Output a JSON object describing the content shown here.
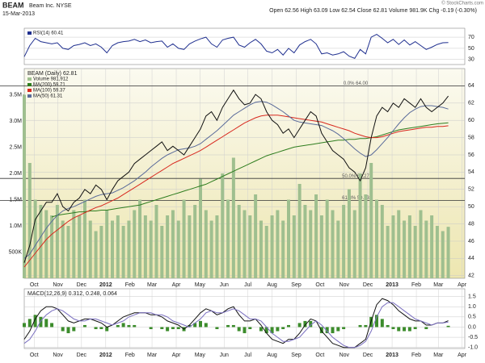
{
  "header": {
    "symbol": "BEAM",
    "name": "Beam Inc.  NYSE",
    "date": "15-Mar-2013",
    "quote": "Open 62.56  High 63.09  Low 62.54  Close 62.81  Volume 981.9K  Chg -0.19 (-0.30%)",
    "credit": "© StockCharts.com"
  },
  "chart_data": [
    {
      "type": "line",
      "xlim": [
        0,
        80
      ],
      "ylim": [
        21,
        86
      ],
      "yticks": [
        30,
        50,
        70
      ],
      "grid": true,
      "series": [
        {
          "name": "RSI(14) 60.41",
          "color": "#1f2f8f",
          "values": [
            35,
            55,
            68,
            62,
            60,
            58,
            60,
            50,
            48,
            55,
            57,
            60,
            55,
            58,
            52,
            42,
            55,
            60,
            62,
            63,
            66,
            62,
            65,
            60,
            62,
            63,
            52,
            58,
            50,
            48,
            58,
            63,
            67,
            70,
            58,
            52,
            65,
            68,
            70,
            56,
            52,
            60,
            66,
            58,
            45,
            42,
            48,
            38,
            50,
            42,
            56,
            62,
            66,
            58,
            40,
            42,
            38,
            40,
            44,
            36,
            32,
            48,
            40,
            70,
            75,
            68,
            60,
            66,
            57,
            65,
            56,
            62,
            55,
            48,
            52,
            57,
            60,
            60.41
          ]
        }
      ]
    },
    {
      "type": "line",
      "title": "BEAM (Daily) 62.81",
      "xlim": [
        0,
        80
      ],
      "ylim": [
        41.7,
        66
      ],
      "yticks": [
        42,
        44,
        46,
        48,
        50,
        52,
        54,
        56,
        58,
        60,
        62,
        64
      ],
      "grid": true,
      "xticks": [
        {
          "value": 1.8,
          "label": "Oct"
        },
        {
          "value": 6.1,
          "label": "Nov"
        },
        {
          "value": 10.4,
          "label": "Dec"
        },
        {
          "value": 14.8,
          "label": "2012"
        },
        {
          "value": 19.2,
          "label": "Feb"
        },
        {
          "value": 23.2,
          "label": "Mar"
        },
        {
          "value": 27.6,
          "label": "Apr"
        },
        {
          "value": 31.9,
          "label": "May"
        },
        {
          "value": 36.3,
          "label": "Jun"
        },
        {
          "value": 40.6,
          "label": "Jul"
        },
        {
          "value": 45,
          "label": "Aug"
        },
        {
          "value": 49.4,
          "label": "Sep"
        },
        {
          "value": 53.7,
          "label": "Oct"
        },
        {
          "value": 58.1,
          "label": "Nov"
        },
        {
          "value": 62.4,
          "label": "Dec"
        },
        {
          "value": 66.8,
          "label": "2013"
        },
        {
          "value": 71.2,
          "label": "Feb"
        },
        {
          "value": 75.2,
          "label": "Mar"
        },
        {
          "value": 79.5,
          "label": "Apr"
        }
      ],
      "y2lim": [
        0,
        4000000
      ],
      "y2ticks": [
        {
          "value": 500000,
          "label": "500K"
        },
        {
          "value": 1000000,
          "label": "1.0M"
        },
        {
          "value": 1500000,
          "label": "1.5M"
        },
        {
          "value": 2000000,
          "label": "2.0M"
        },
        {
          "value": 2500000,
          "label": "2.5M"
        },
        {
          "value": 3000000,
          "label": "3.0M"
        },
        {
          "value": 3500000,
          "label": "3.5M"
        }
      ],
      "fib": [
        {
          "value": 64,
          "label": "0.0% 64.00"
        },
        {
          "value": 53.27,
          "label": "50.0% 53.27"
        },
        {
          "value": 50.73,
          "label": "61.8% 50.73"
        }
      ],
      "series": [
        {
          "name": "Volume 981,912",
          "type": "bar",
          "axis": "y2",
          "color": "#9fbf8f",
          "values": [
            3500000,
            2200000,
            1500000,
            1400000,
            1300000,
            1200000,
            1400000,
            1100000,
            1000000,
            1300000,
            1200000,
            1500000,
            1100000,
            900000,
            1000000,
            1300000,
            1100000,
            1200000,
            1000000,
            1100000,
            1300000,
            1500000,
            1200000,
            1100000,
            1400000,
            1000000,
            1200000,
            1300000,
            1100000,
            1500000,
            1200000,
            1400000,
            1900000,
            1300000,
            1100000,
            1200000,
            2000000,
            1500000,
            2300000,
            1400000,
            1300000,
            1200000,
            1600000,
            1100000,
            1000000,
            1200000,
            1300000,
            1100000,
            1500000,
            1200000,
            1800000,
            1400000,
            1300000,
            1600000,
            1200000,
            1500000,
            1300000,
            1100000,
            1400000,
            1700000,
            1300000,
            2000000,
            1600000,
            2200000,
            1500000,
            1400000,
            1000000,
            1200000,
            1300000,
            1100000,
            1200000,
            1000000,
            1300000,
            1100000,
            1200000,
            1000000,
            900000,
            981912
          ]
        },
        {
          "name": "MA(200) 59.71",
          "color": "#2e7d1e",
          "values": [
            null,
            null,
            null,
            null,
            null,
            48.8,
            49,
            49.1,
            49.2,
            49.3,
            49.4,
            49.4,
            49.5,
            49.5,
            49.6,
            49.6,
            49.7,
            49.8,
            49.9,
            50,
            50.1,
            50.2,
            50.4,
            50.6,
            50.8,
            51,
            51.2,
            51.4,
            51.6,
            51.8,
            52,
            52.2,
            52.4,
            52.6,
            52.9,
            53.2,
            53.5,
            53.8,
            54.1,
            54.4,
            54.7,
            55,
            55.3,
            55.6,
            55.9,
            56.1,
            56.3,
            56.5,
            56.7,
            56.9,
            57,
            57.1,
            57.2,
            57.3,
            57.4,
            57.5,
            57.6,
            57.7,
            57.7,
            57.8,
            57.8,
            57.9,
            57.9,
            58,
            58.1,
            58.3,
            58.5,
            58.7,
            58.9,
            59,
            59.1,
            59.2,
            59.3,
            59.4,
            59.5,
            59.6,
            59.65,
            59.71
          ]
        },
        {
          "name": "MA(100) 59.37",
          "color": "#d8281e",
          "values": [
            43,
            43.8,
            44.6,
            45.4,
            46.2,
            46.8,
            47.3,
            47.8,
            48.3,
            48.7,
            49,
            49.3,
            49.6,
            49.9,
            50.1,
            50.4,
            50.7,
            51,
            51.4,
            51.8,
            52.2,
            52.6,
            53,
            53.4,
            53.8,
            54.2,
            54.6,
            55,
            55.3,
            55.6,
            55.9,
            56.2,
            56.5,
            56.9,
            57.3,
            57.7,
            58.1,
            58.5,
            58.9,
            59.3,
            59.7,
            60,
            60.3,
            60.5,
            60.6,
            60.6,
            60.6,
            60.5,
            60.4,
            60.3,
            60.2,
            60.1,
            60,
            59.9,
            59.8,
            59.6,
            59.4,
            59.2,
            59,
            58.8,
            58.5,
            58.3,
            58.1,
            58,
            58,
            58.1,
            58.3,
            58.5,
            58.7,
            58.8,
            58.9,
            59,
            59.1,
            59.2,
            59.2,
            59.3,
            59.3,
            59.37
          ]
        },
        {
          "name": "MA(50) 61.31",
          "color": "#5a6b9a",
          "values": [
            44,
            44.5,
            45.5,
            46.5,
            47.5,
            48.3,
            49,
            49.5,
            49.8,
            50,
            50.3,
            50.6,
            50.9,
            51.2,
            51.4,
            51.5,
            51.6,
            51.9,
            52.2,
            52.6,
            53,
            53.5,
            54,
            54.6,
            55.1,
            55.6,
            56,
            56.3,
            56.6,
            56.7,
            56.8,
            57,
            57.3,
            57.8,
            58.3,
            58.8,
            59.4,
            60,
            60.6,
            61,
            61.4,
            61.8,
            62.1,
            62.2,
            62.1,
            61.8,
            61.4,
            61,
            60.5,
            60,
            59.8,
            59.7,
            59.6,
            59.5,
            59.4,
            59.1,
            58.8,
            58.4,
            57.9,
            57.3,
            56.7,
            56.2,
            55.8,
            56,
            56.6,
            57.3,
            58,
            58.8,
            59.6,
            60.3,
            60.9,
            61.3,
            61.6,
            61.7,
            61.7,
            61.6,
            61.5,
            61.31
          ]
        },
        {
          "color": "#111111",
          "values": [
            43.5,
            45.5,
            48.5,
            49.5,
            50.5,
            50.5,
            51.5,
            50,
            49.5,
            50.5,
            51,
            52,
            51.5,
            52.5,
            52,
            50.8,
            52,
            53,
            53.5,
            54,
            55,
            55.5,
            56,
            56.5,
            57,
            57.5,
            56.5,
            57,
            56.5,
            56,
            57,
            58,
            59,
            60.5,
            61,
            60,
            61.5,
            62.5,
            63.5,
            62.5,
            61.8,
            62,
            63,
            62.5,
            61,
            60,
            59.5,
            58.5,
            59,
            58,
            59,
            60,
            61,
            60.5,
            58.5,
            57.5,
            56.5,
            56,
            55.5,
            54.5,
            54,
            53,
            54.5,
            58,
            60.5,
            61.5,
            61,
            62,
            61.5,
            62.5,
            62,
            61.5,
            62.5,
            61.5,
            61,
            61.5,
            62,
            62.81
          ]
        }
      ]
    },
    {
      "type": "line",
      "title": "MACD(12,26,9) 0.312, 0.248, 0.064",
      "xlim": [
        0,
        80
      ],
      "ylim": [
        -1.05,
        1.88
      ],
      "grid": true,
      "yticks": [
        {
          "value": -1,
          "label": "-1.0"
        },
        -0.5,
        {
          "value": 0,
          "label": "0.0"
        },
        0.5,
        {
          "value": 1,
          "label": "1.0"
        },
        1.5
      ],
      "xticks": [
        {
          "value": 1.8,
          "label": "Oct"
        },
        {
          "value": 6.1,
          "label": "Nov"
        },
        {
          "value": 10.4,
          "label": "Dec"
        },
        {
          "value": 14.8,
          "label": "2012"
        },
        {
          "value": 19.2,
          "label": "Feb"
        },
        {
          "value": 23.2,
          "label": "Mar"
        },
        {
          "value": 27.6,
          "label": "Apr"
        },
        {
          "value": 31.9,
          "label": "May"
        },
        {
          "value": 36.3,
          "label": "Jun"
        },
        {
          "value": 40.6,
          "label": "Jul"
        },
        {
          "value": 45,
          "label": "Aug"
        },
        {
          "value": 49.4,
          "label": "Sep"
        },
        {
          "value": 53.7,
          "label": "Oct"
        },
        {
          "value": 58.1,
          "label": "Nov"
        },
        {
          "value": 62.4,
          "label": "Dec"
        },
        {
          "value": 66.8,
          "label": "2013"
        },
        {
          "value": 71.2,
          "label": "Feb"
        },
        {
          "value": 75.2,
          "label": "Mar"
        },
        {
          "value": 79.5,
          "label": "Apr"
        }
      ],
      "series": [
        {
          "type": "bar",
          "color": "#3c8c2c",
          "values": [
            0.2,
            0.4,
            0.6,
            0.5,
            0.4,
            0.2,
            0,
            -0.2,
            -0.3,
            -0.2,
            0,
            0.1,
            0,
            -0.1,
            -0.1,
            -0.2,
            0,
            0.1,
            0.2,
            0.1,
            0.1,
            0,
            0,
            -0.1,
            0,
            -0.1,
            -0.2,
            -0.1,
            -0.1,
            -0.2,
            0.1,
            0.2,
            0.3,
            0.2,
            0,
            -0.1,
            0,
            0.1,
            0.1,
            -0.2,
            -0.3,
            -0.1,
            0,
            -0.2,
            -0.3,
            -0.3,
            -0.2,
            -0.1,
            0.1,
            0,
            0.2,
            0.3,
            0.3,
            0,
            -0.3,
            -0.3,
            -0.3,
            -0.2,
            -0.1,
            0,
            0,
            0.1,
            0.1,
            0.5,
            0.6,
            0.4,
            0.1,
            -0.1,
            -0.2,
            -0.2,
            -0.2,
            -0.1,
            0,
            -0.1,
            0,
            0,
            0,
            0.064
          ]
        },
        {
          "color": "#111111",
          "values": [
            -0.6,
            -0.2,
            0.4,
            0.8,
            1.0,
            1.0,
            0.9,
            0.6,
            0.3,
            0.2,
            0.3,
            0.4,
            0.4,
            0.3,
            0.2,
            0.0,
            0.1,
            0.3,
            0.5,
            0.6,
            0.7,
            0.7,
            0.7,
            0.6,
            0.6,
            0.5,
            0.3,
            0.2,
            0.1,
            -0.1,
            0.1,
            0.4,
            0.7,
            0.9,
            0.8,
            0.6,
            0.7,
            0.9,
            1.0,
            0.6,
            0.3,
            0.3,
            0.4,
            0.1,
            -0.3,
            -0.6,
            -0.7,
            -0.8,
            -0.6,
            -0.6,
            -0.3,
            0.1,
            0.4,
            0.3,
            -0.2,
            -0.5,
            -0.8,
            -0.9,
            -1.0,
            -1.0,
            -1.0,
            -0.8,
            -0.6,
            0.3,
            1.1,
            1.4,
            1.3,
            1.1,
            0.8,
            0.6,
            0.4,
            0.3,
            0.3,
            0.1,
            0.1,
            0.2,
            0.2,
            0.312
          ]
        },
        {
          "color": "#7a6fc0",
          "values": [
            -0.8,
            -0.6,
            -0.2,
            0.3,
            0.6,
            0.8,
            0.9,
            0.8,
            0.6,
            0.4,
            0.3,
            0.3,
            0.4,
            0.4,
            0.3,
            0.2,
            0.1,
            0.2,
            0.3,
            0.5,
            0.6,
            0.7,
            0.7,
            0.7,
            0.6,
            0.6,
            0.5,
            0.3,
            0.2,
            0.1,
            0.0,
            0.2,
            0.4,
            0.7,
            0.8,
            0.7,
            0.7,
            0.8,
            0.9,
            0.8,
            0.6,
            0.4,
            0.4,
            0.3,
            0.0,
            -0.3,
            -0.5,
            -0.7,
            -0.7,
            -0.6,
            -0.5,
            -0.2,
            0.1,
            0.3,
            0.1,
            -0.2,
            -0.5,
            -0.7,
            -0.9,
            -1.0,
            -1.0,
            -0.9,
            -0.7,
            -0.2,
            0.5,
            1.0,
            1.2,
            1.2,
            1.0,
            0.8,
            0.6,
            0.4,
            0.3,
            0.2,
            0.1,
            0.2,
            0.2,
            0.248
          ]
        }
      ]
    }
  ]
}
